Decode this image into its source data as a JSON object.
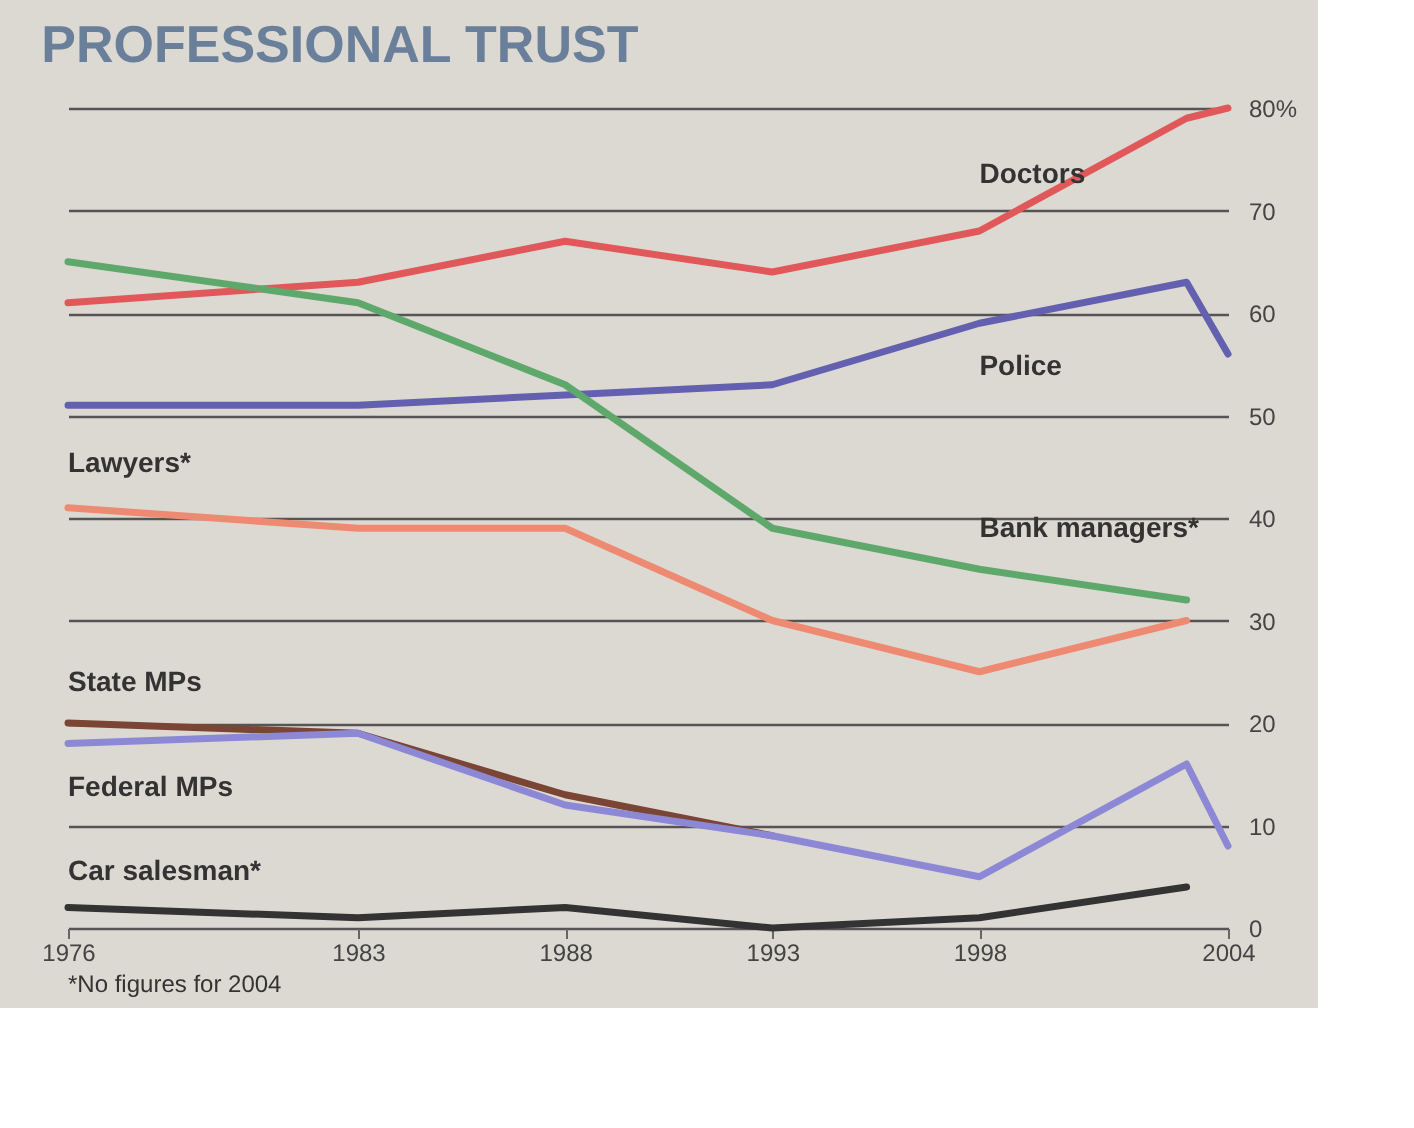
{
  "chart_data": {
    "type": "line",
    "title": "PROFESSIONAL TRUST",
    "x": [
      1976,
      1983,
      1988,
      1993,
      1998,
      2003,
      2004
    ],
    "series": [
      {
        "name": "Doctors",
        "color": "#e0585a",
        "values": [
          61,
          63,
          67,
          64,
          68,
          79,
          80
        ]
      },
      {
        "name": "Police",
        "color": "#6460b0",
        "values": [
          51,
          51,
          52,
          53,
          59,
          63,
          56
        ]
      },
      {
        "name": "Bank managers*",
        "color": "#5fa86c",
        "values": [
          65,
          61,
          53,
          39,
          35,
          32,
          null
        ]
      },
      {
        "name": "Lawyers*",
        "color": "#ee8a72",
        "values": [
          41,
          39,
          39,
          30,
          25,
          30,
          null
        ]
      },
      {
        "name": "State MPs",
        "color": "#7a4535",
        "values": [
          20,
          19,
          13,
          9,
          null,
          null,
          null
        ]
      },
      {
        "name": "Federal MPs",
        "color": "#8c88d6",
        "values": [
          18,
          19,
          12,
          9,
          5,
          16,
          8
        ]
      },
      {
        "name": "Car salesman*",
        "color": "#333333",
        "values": [
          2,
          1,
          2,
          0,
          1,
          4,
          null
        ]
      }
    ],
    "xlim": [
      1976,
      2004
    ],
    "xticks": [
      1976,
      1983,
      1988,
      1993,
      1998,
      2004
    ],
    "ylim": [
      0,
      80
    ],
    "yticks": [
      0,
      10,
      20,
      30,
      40,
      50,
      60,
      70,
      {
        "value": 80,
        "label": "80%"
      }
    ],
    "grid": "y",
    "legend": false,
    "marker": "none",
    "line_style": "solid",
    "annotations": [
      "*No figures for 2004"
    ]
  }
}
